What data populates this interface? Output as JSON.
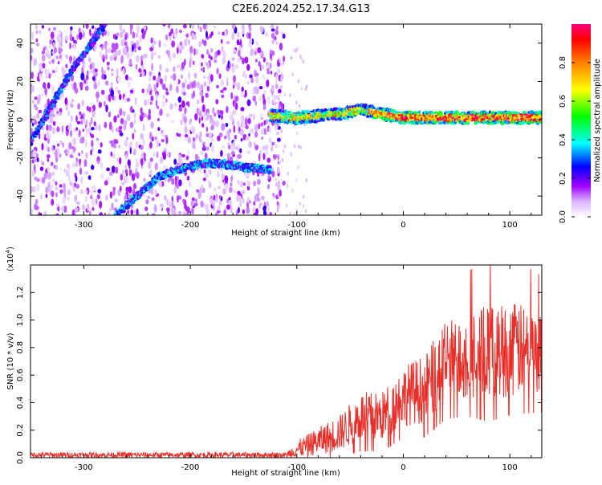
{
  "title": "C2E6.2024.252.17.34.G13",
  "chart_data": [
    {
      "type": "heatmap",
      "xlabel": "Height of straight line (km)",
      "ylabel": "Frequency (Hz)",
      "xlim": [
        -350,
        130
      ],
      "ylim": [
        -50,
        50
      ],
      "xticks": [
        -300,
        -200,
        -100,
        0,
        100
      ],
      "yticks": [
        -40,
        -20,
        0,
        20,
        40
      ],
      "colorbar": {
        "label": "Normalized spectral amplitude",
        "range": [
          0.0,
          1.0
        ],
        "ticks": [
          0.0,
          0.2,
          0.4,
          0.6,
          0.8
        ],
        "colormap": [
          "#ffffff",
          "#a000ff",
          "#0000ff",
          "#00ffff",
          "#00ff00",
          "#ffff00",
          "#ff8000",
          "#ff0000",
          "#ff0080"
        ]
      },
      "background_noise": {
        "x_range": [
          -350,
          -120
        ],
        "level": 0.15
      },
      "tracks": [
        {
          "points": [
            [
              -350,
              -12
            ],
            [
              -330,
              8
            ],
            [
              -310,
              27
            ],
            [
              -290,
              42
            ],
            [
              -280,
              50
            ]
          ],
          "amplitude": 0.3
        },
        {
          "points": [
            [
              -270,
              -50
            ],
            [
              -250,
              -40
            ],
            [
              -230,
              -30
            ],
            [
              -210,
              -26
            ],
            [
              -190,
              -23
            ],
            [
              -170,
              -23
            ],
            [
              -150,
              -25
            ],
            [
              -125,
              -26
            ]
          ],
          "amplitude": 0.35
        },
        {
          "points": [
            [
              -125,
              2
            ],
            [
              -100,
              1
            ],
            [
              -60,
              3
            ],
            [
              -40,
              5
            ],
            [
              0,
              1
            ],
            [
              50,
              1
            ],
            [
              100,
              1
            ],
            [
              130,
              1
            ]
          ],
          "amplitude": 0.75
        }
      ]
    },
    {
      "type": "line",
      "xlabel": "Height of straight line (km)",
      "ylabel": "SNR (10 * v/v)",
      "ymultiplier": "(x10",
      "ymultiplier_exp": "4",
      "ymultiplier_close": ")",
      "xlim": [
        -350,
        130
      ],
      "ylim": [
        0,
        1.4
      ],
      "xticks": [
        -300,
        -200,
        -100,
        0,
        100
      ],
      "yticks": [
        0.0,
        0.2,
        0.4,
        0.6,
        0.8,
        1.0,
        1.2
      ],
      "color": "#e8302a",
      "envelope": {
        "x": [
          -350,
          -110,
          -100,
          -80,
          -60,
          -40,
          -20,
          0,
          20,
          40,
          60,
          80,
          100,
          130
        ],
        "mean": [
          0.02,
          0.02,
          0.06,
          0.12,
          0.18,
          0.3,
          0.3,
          0.45,
          0.5,
          0.7,
          0.75,
          0.75,
          0.8,
          0.75
        ],
        "spread": [
          0.02,
          0.02,
          0.06,
          0.1,
          0.13,
          0.18,
          0.18,
          0.22,
          0.25,
          0.3,
          0.32,
          0.35,
          0.35,
          0.3
        ]
      }
    }
  ]
}
